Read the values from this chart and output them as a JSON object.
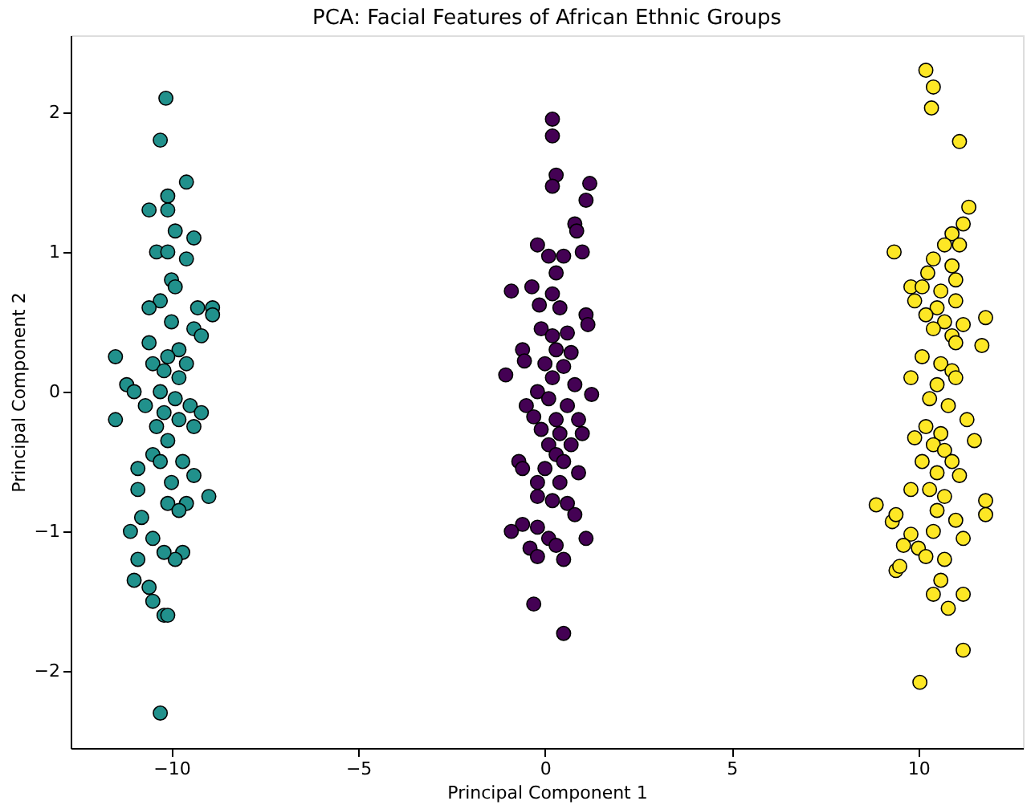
{
  "chart_data": {
    "type": "scatter",
    "title": "PCA: Facial Features of African Ethnic Groups",
    "xlabel": "Principal Component 1",
    "ylabel": "Principal Component 2",
    "xlim": [
      -12.7,
      12.8
    ],
    "ylim": [
      -2.55,
      2.55
    ],
    "xticks": [
      {
        "value": -10,
        "label": "−10"
      },
      {
        "value": -5,
        "label": "−5"
      },
      0,
      5,
      10
    ],
    "yticks": [
      {
        "value": -2,
        "label": "−2"
      },
      {
        "value": -1,
        "label": "−1"
      },
      0,
      1,
      2
    ],
    "grid": false,
    "legend": false,
    "marker": "circle",
    "series": [
      {
        "color": "#21918c",
        "x": [
          -10.15,
          -10.3,
          -9.6,
          -10.1,
          -10.6,
          -10.1,
          -9.9,
          -9.4,
          -10.4,
          -10.1,
          -9.6,
          -10.0,
          -9.9,
          -10.3,
          -10.6,
          -9.3,
          -8.9,
          -8.9,
          -10.0,
          -9.4,
          -9.2,
          -10.6,
          -9.8,
          -10.1,
          -11.5,
          -10.5,
          -9.6,
          -10.2,
          -9.8,
          -11.2,
          -11.0,
          -10.3,
          -9.9,
          -10.7,
          -9.5,
          -10.2,
          -11.5,
          -9.2,
          -9.8,
          -10.4,
          -9.4,
          -10.1,
          -10.5,
          -9.7,
          -10.3,
          -10.9,
          -9.4,
          -10.0,
          -9.0,
          -10.9,
          -10.1,
          -9.6,
          -10.8,
          -9.8,
          -11.1,
          -10.5,
          -9.7,
          -9.9,
          -10.2,
          -10.9,
          -11.0,
          -10.6,
          -10.5,
          -10.2,
          -10.1,
          -10.3
        ],
        "values": [
          2.1,
          1.8,
          1.5,
          1.4,
          1.3,
          1.3,
          1.15,
          1.1,
          1.0,
          1.0,
          0.95,
          0.8,
          0.75,
          0.65,
          0.6,
          0.6,
          0.6,
          0.55,
          0.5,
          0.45,
          0.4,
          0.35,
          0.3,
          0.25,
          0.25,
          0.2,
          0.2,
          0.15,
          0.1,
          0.05,
          0.0,
          0.0,
          -0.05,
          -0.1,
          -0.1,
          -0.15,
          -0.2,
          -0.15,
          -0.2,
          -0.25,
          -0.25,
          -0.35,
          -0.45,
          -0.5,
          -0.5,
          -0.55,
          -0.6,
          -0.65,
          -0.75,
          -0.7,
          -0.8,
          -0.8,
          -0.9,
          -0.85,
          -1.0,
          -1.05,
          -1.15,
          -1.2,
          -1.15,
          -1.2,
          -1.35,
          -1.4,
          -1.5,
          -1.6,
          -1.6,
          -2.3
        ]
      },
      {
        "color": "#440154",
        "x": [
          0.2,
          0.2,
          0.3,
          0.2,
          1.2,
          1.1,
          0.8,
          0.85,
          -0.2,
          1.0,
          0.1,
          0.5,
          0.3,
          -0.9,
          -0.35,
          0.2,
          -0.15,
          0.4,
          1.1,
          1.15,
          -0.1,
          0.2,
          0.6,
          -0.6,
          0.3,
          0.7,
          -0.55,
          0.0,
          0.5,
          -1.05,
          0.2,
          0.8,
          -0.2,
          1.25,
          0.1,
          -0.5,
          0.6,
          -0.3,
          0.3,
          0.9,
          -0.1,
          1.0,
          0.4,
          0.1,
          0.7,
          0.3,
          -0.7,
          0.5,
          -0.6,
          0.0,
          0.9,
          -0.2,
          0.4,
          -0.2,
          0.2,
          0.6,
          0.8,
          -0.6,
          -0.9,
          -0.2,
          0.1,
          1.1,
          -0.4,
          0.3,
          -0.2,
          0.5,
          -0.3,
          0.5
        ],
        "values": [
          1.95,
          1.83,
          1.55,
          1.47,
          1.49,
          1.37,
          1.2,
          1.15,
          1.05,
          1.0,
          0.97,
          0.97,
          0.85,
          0.72,
          0.75,
          0.7,
          0.62,
          0.6,
          0.55,
          0.48,
          0.45,
          0.4,
          0.42,
          0.3,
          0.3,
          0.28,
          0.22,
          0.2,
          0.18,
          0.12,
          0.1,
          0.05,
          0.0,
          -0.02,
          -0.05,
          -0.1,
          -0.1,
          -0.18,
          -0.2,
          -0.2,
          -0.27,
          -0.3,
          -0.3,
          -0.38,
          -0.38,
          -0.45,
          -0.5,
          -0.5,
          -0.55,
          -0.55,
          -0.58,
          -0.65,
          -0.65,
          -0.75,
          -0.78,
          -0.8,
          -0.88,
          -0.95,
          -1.0,
          -0.97,
          -1.05,
          -1.05,
          -1.12,
          -1.1,
          -1.18,
          -1.2,
          -1.52,
          -1.73
        ]
      },
      {
        "color": "#fde725",
        "x": [
          10.2,
          10.4,
          10.35,
          11.1,
          11.35,
          11.2,
          10.9,
          11.1,
          10.7,
          9.35,
          10.4,
          10.9,
          10.25,
          11.0,
          9.8,
          10.1,
          10.6,
          9.9,
          11.0,
          10.5,
          10.2,
          10.7,
          11.8,
          11.2,
          10.4,
          10.9,
          11.0,
          11.7,
          10.1,
          10.6,
          10.9,
          9.8,
          11.0,
          10.5,
          10.3,
          10.8,
          11.3,
          10.2,
          10.6,
          11.5,
          9.9,
          10.4,
          10.7,
          10.1,
          10.9,
          10.5,
          11.1,
          9.8,
          10.3,
          10.7,
          11.8,
          9.3,
          8.87,
          9.4,
          10.5,
          11.0,
          9.8,
          10.4,
          11.2,
          9.6,
          10.0,
          10.2,
          10.7,
          9.4,
          9.5,
          10.6,
          10.4,
          11.2,
          10.8,
          11.2,
          10.04,
          11.8
        ],
        "values": [
          2.3,
          2.18,
          2.03,
          1.79,
          1.32,
          1.2,
          1.13,
          1.05,
          1.05,
          1.0,
          0.95,
          0.9,
          0.85,
          0.8,
          0.75,
          0.75,
          0.72,
          0.65,
          0.65,
          0.6,
          0.55,
          0.5,
          0.53,
          0.48,
          0.45,
          0.4,
          0.35,
          0.33,
          0.25,
          0.2,
          0.15,
          0.1,
          0.1,
          0.05,
          -0.05,
          -0.1,
          -0.2,
          -0.25,
          -0.3,
          -0.35,
          -0.33,
          -0.38,
          -0.42,
          -0.5,
          -0.5,
          -0.58,
          -0.6,
          -0.7,
          -0.7,
          -0.75,
          -0.78,
          -0.93,
          -0.81,
          -0.88,
          -0.85,
          -0.92,
          -1.02,
          -1.0,
          -1.05,
          -1.1,
          -1.12,
          -1.18,
          -1.2,
          -1.28,
          -1.25,
          -1.35,
          -1.45,
          -1.45,
          -1.55,
          -1.85,
          -2.08,
          -0.88
        ]
      }
    ]
  }
}
